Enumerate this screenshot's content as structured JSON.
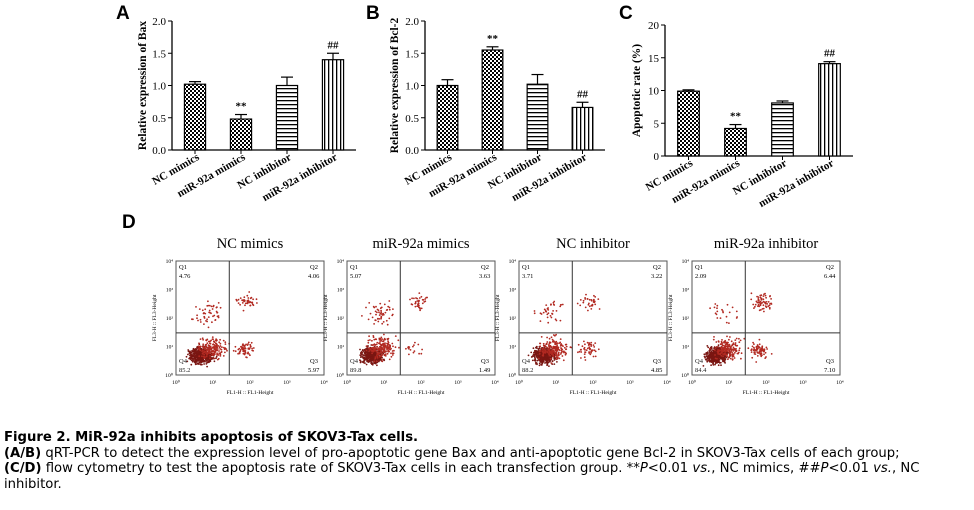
{
  "panel_letters": {
    "A": "A",
    "B": "B",
    "C": "C",
    "D": "D"
  },
  "chart_data": [
    {
      "type": "bar",
      "panel": "A",
      "categories": [
        "NC mimics",
        "miR-92a mimics",
        "NC inhibitor",
        "miR-92a inhibitor"
      ],
      "values": [
        1.02,
        0.48,
        1.0,
        1.4
      ],
      "errors": [
        0.04,
        0.07,
        0.13,
        0.1
      ],
      "annotations": [
        "",
        "**",
        "",
        "##"
      ],
      "ylabel": "Relative expression of Bax",
      "ylim": [
        0,
        2.0
      ],
      "yticks": [
        0,
        0.5,
        1.0,
        1.5,
        2.0
      ],
      "ytick_labels": [
        "0.0",
        "0.5",
        "1.0",
        "1.5",
        "2.0"
      ],
      "patterns": [
        "checker",
        "checker",
        "hlines",
        "vlines"
      ]
    },
    {
      "type": "bar",
      "panel": "B",
      "categories": [
        "NC mimics",
        "miR-92a mimics",
        "NC inhibitor",
        "miR-92a inhibitor"
      ],
      "values": [
        1.0,
        1.55,
        1.02,
        0.66
      ],
      "errors": [
        0.09,
        0.05,
        0.15,
        0.08
      ],
      "annotations": [
        "",
        "**",
        "",
        "##"
      ],
      "ylabel": "Relative expression of Bcl-2",
      "ylim": [
        0,
        2.0
      ],
      "yticks": [
        0,
        0.5,
        1.0,
        1.5,
        2.0
      ],
      "ytick_labels": [
        "0.0",
        "0.5",
        "1.0",
        "1.5",
        "2.0"
      ],
      "patterns": [
        "checker",
        "checker",
        "hlines",
        "vlines"
      ]
    },
    {
      "type": "bar",
      "panel": "C",
      "categories": [
        "NC mimics",
        "miR-92a mimics",
        "NC inhibitor",
        "miR-92a inhibitor"
      ],
      "values": [
        9.9,
        4.2,
        8.1,
        14.1
      ],
      "errors": [
        0.2,
        0.6,
        0.3,
        0.3
      ],
      "annotations": [
        "",
        "**",
        "",
        "##"
      ],
      "ylabel": "Apoptotic rate (%)",
      "ylim": [
        0,
        20
      ],
      "yticks": [
        0,
        5,
        10,
        15,
        20
      ],
      "ytick_labels": [
        "0",
        "5",
        "10",
        "15",
        "20"
      ],
      "patterns": [
        "checker",
        "checker",
        "hlines",
        "vlines"
      ]
    },
    {
      "type": "scatter",
      "panel": "D",
      "name": "NC mimics",
      "quadrants": {
        "Q1": "4.76",
        "Q2": "4.06",
        "Q3": "5.97",
        "Q4": "85.2"
      }
    },
    {
      "type": "scatter",
      "panel": "D",
      "name": "miR-92a mimics",
      "quadrants": {
        "Q1": "5.07",
        "Q2": "3.63",
        "Q3": "1.49",
        "Q4": "89.8"
      }
    },
    {
      "type": "scatter",
      "panel": "D",
      "name": "NC inhibitor",
      "quadrants": {
        "Q1": "3.71",
        "Q2": "3.22",
        "Q3": "4.85",
        "Q4": "88.2"
      }
    },
    {
      "type": "scatter",
      "panel": "D",
      "name": "miR-92a inhibitor",
      "quadrants": {
        "Q1": "2.09",
        "Q2": "6.44",
        "Q3": "7.10",
        "Q4": "84.4"
      }
    }
  ],
  "flow_axes": {
    "xlabel": "FL1-H :: FL1-Height",
    "ylabel": "FL3-H :: FL3-Height",
    "ticks": [
      "10⁰",
      "10¹",
      "10²",
      "10³",
      "10⁴"
    ],
    "quadrant_names": [
      "Q1",
      "Q2",
      "Q3",
      "Q4"
    ]
  },
  "colors": {
    "dots": "#b22a22",
    "dense": "#7a1612"
  },
  "caption": {
    "title": "Figure 2. MiR-92a inhibits apoptosis of SKOV3-Tax cells.",
    "line1_a": "(A/B)",
    "line1_b": " qRT-PCR to detect the expression level of pro-apoptotic gene Bax and anti-apoptotic gene Bcl-2 in SKOV3-Tax cells of each group;",
    "line2_a": "(C/D)",
    "line2_b": " flow cytometry to test the apoptosis rate of SKOV3-Tax cells in each transfection group. **",
    "line2_p1": "P",
    "line2_c": "<0.01 ",
    "line2_vs1": "vs.",
    "line2_d": ", NC mimics, ##",
    "line2_p2": "P",
    "line2_e": "<0.01 ",
    "line2_vs2": "vs.",
    "line2_f": ", NC",
    "line3": "inhibitor."
  }
}
